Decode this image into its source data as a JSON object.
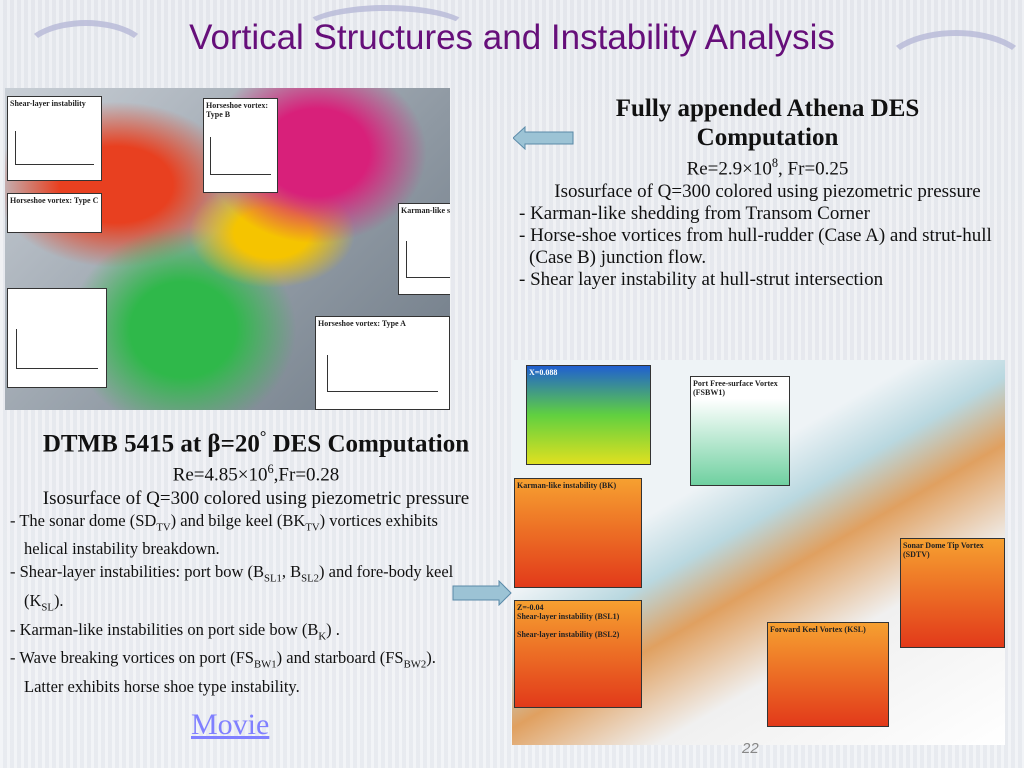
{
  "title": "Vortical Structures and Instability Analysis",
  "athena": {
    "heading": "Fully appended Athena DES Computation",
    "params": [
      {
        "t": "Re=2.9×10"
      },
      {
        "t": "8",
        "sup": true
      },
      {
        "t": ", Fr=0.25"
      }
    ],
    "iso": "Isosurface of Q=300 colored using piezometric pressure",
    "bullets": [
      [
        {
          "t": "- Karman-like shedding from Transom Corner"
        }
      ],
      [
        {
          "t": "- Horse-shoe vortices from hull-rudder (Case A) and strut-hull (Case B) junction flow."
        }
      ],
      [
        {
          "t": "- Shear layer instability at hull-strut intersection"
        }
      ]
    ],
    "image_labels": [
      "Shear-layer instability",
      "Horseshoe vortex: Type B",
      "Horseshoe vortex: Type C",
      "Karman-like shedding",
      "Horseshoe vortex: Type A"
    ]
  },
  "dtmb": {
    "heading": [
      {
        "t": "DTMB 5415 at β=20"
      },
      {
        "t": "°",
        "sup": true
      },
      {
        "t": " DES Computation"
      }
    ],
    "params": [
      {
        "t": "Re=4.85×10"
      },
      {
        "t": "6",
        "sup": true
      },
      {
        "t": ",Fr=0.28"
      }
    ],
    "iso": "Isosurface of Q=300 colored using piezometric pressure",
    "bullets": [
      [
        {
          "t": "- The sonar dome (SD"
        },
        {
          "t": "TV",
          "sub": true
        },
        {
          "t": ") and bilge keel (BK"
        },
        {
          "t": "TV",
          "sub": true
        },
        {
          "t": ") vortices exhibits helical instability breakdown."
        }
      ],
      [
        {
          "t": "- Shear-layer instabilities: port bow (B"
        },
        {
          "t": "SL1",
          "sub": true
        },
        {
          "t": ", B"
        },
        {
          "t": "SL2",
          "sub": true
        },
        {
          "t": ")  and fore-body keel (K"
        },
        {
          "t": "SL",
          "sub": true
        },
        {
          "t": ")."
        }
      ],
      [
        {
          "t": "- Karman-like instabilities on port side bow (B"
        },
        {
          "t": "K",
          "sub": true
        },
        {
          "t": ") ."
        }
      ],
      [
        {
          "t": "- Wave breaking vortices on port (FS"
        },
        {
          "t": "BW1",
          "sub": true
        },
        {
          "t": ") and starboard (FS"
        },
        {
          "t": "BW2",
          "sub": true
        },
        {
          "t": "). Latter exhibits horse shoe type instability."
        }
      ]
    ],
    "movie_link": "Movie",
    "image_labels": [
      "X=0.088",
      "Port Free-surface Vortex (FSBW1)",
      "Karman-like instability (BK)",
      "Z=-0.04",
      "Shear-layer instability (BSL1)",
      "Shear-layer instability (BSL2)",
      "Sonar Dome Tip Vortex (SDTV)",
      "Forward Keel Vortex (KSL)"
    ]
  },
  "page_number": "22",
  "colors": {
    "title": "#660f7a",
    "arrow": "#9cc3d5",
    "link": "#8080ff"
  }
}
